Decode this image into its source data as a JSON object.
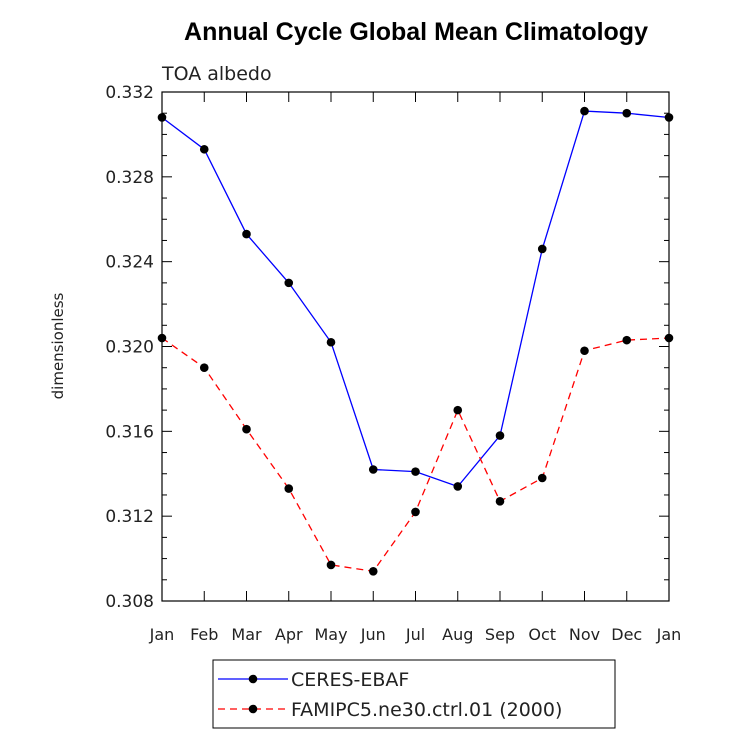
{
  "chart_data": {
    "type": "line",
    "title": "Annual Cycle Global Mean Climatology",
    "subtitle": "TOA albedo",
    "xlabel": "",
    "ylabel": "dimensionless",
    "categories": [
      "Jan",
      "Feb",
      "Mar",
      "Apr",
      "May",
      "Jun",
      "Jul",
      "Aug",
      "Sep",
      "Oct",
      "Nov",
      "Dec",
      "Jan"
    ],
    "ylim": [
      0.308,
      0.332
    ],
    "yticks": [
      "0.308",
      "0.312",
      "0.316",
      "0.320",
      "0.324",
      "0.328",
      "0.332"
    ],
    "grid": false,
    "legend_position": "bottom",
    "series": [
      {
        "name": "CERES-EBAF",
        "color": "#0000ff",
        "dash": "solid",
        "values": [
          0.3308,
          0.3293,
          0.3253,
          0.323,
          0.3202,
          0.3142,
          0.3141,
          0.3134,
          0.3158,
          0.3246,
          0.3311,
          0.331,
          0.3308
        ]
      },
      {
        "name": "FAMIPC5.ne30.ctrl.01 (2000)",
        "color": "#ff0000",
        "dash": "dashed",
        "values": [
          0.3204,
          0.319,
          0.3161,
          0.3133,
          0.3097,
          0.3094,
          0.3122,
          0.317,
          0.3127,
          0.3138,
          0.3198,
          0.3203,
          0.3204
        ]
      }
    ]
  }
}
